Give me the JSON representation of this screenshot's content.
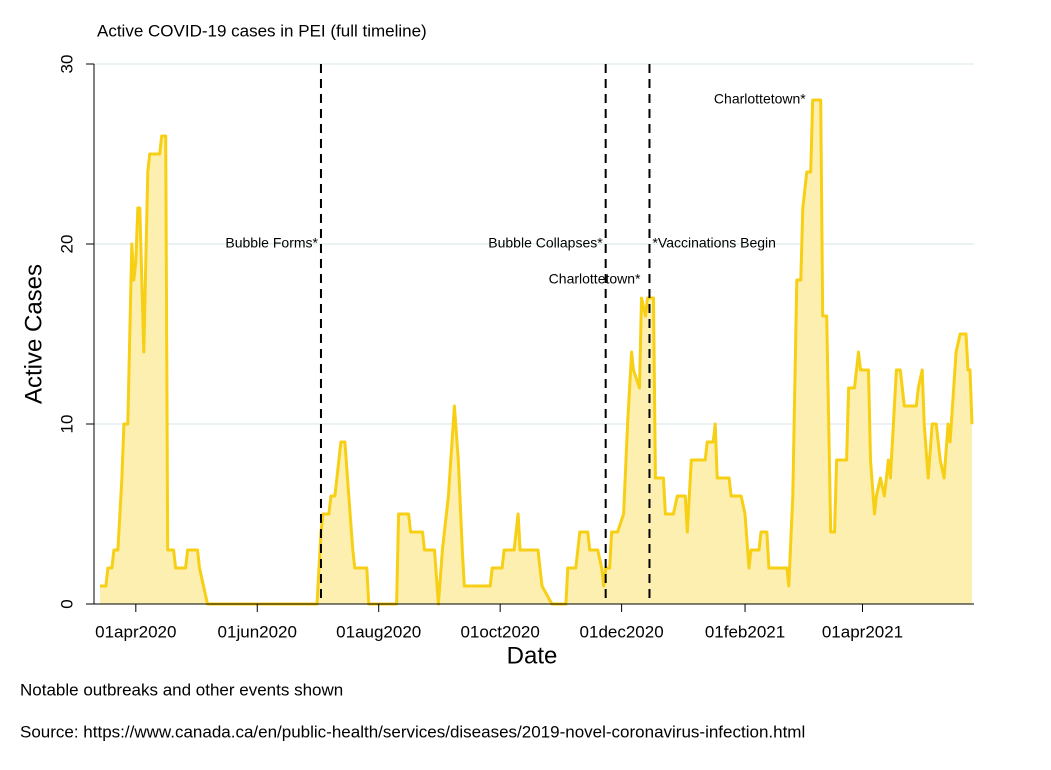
{
  "chart_data": {
    "type": "area",
    "title": "Active COVID-19 cases in PEI (full timeline)",
    "xlabel": "Date",
    "ylabel": "Active Cases",
    "notes": [
      "Notable outbreaks and other events shown",
      "Source: https://www.canada.ca/en/public-health/services/diseases/2019-novel-coronavirus-infection.html"
    ],
    "color": "#f7cf14",
    "fill": "#fdefb0",
    "grid": true,
    "xlim": [
      "2020-03-11",
      "2021-05-27"
    ],
    "xticks": [
      {
        "value": "2020-04-01",
        "label": "01apr2020"
      },
      {
        "value": "2020-06-01",
        "label": "01jun2020"
      },
      {
        "value": "2020-08-01",
        "label": "01aug2020"
      },
      {
        "value": "2020-10-01",
        "label": "01oct2020"
      },
      {
        "value": "2020-12-01",
        "label": "01dec2020"
      },
      {
        "value": "2021-02-01",
        "label": "01feb2021"
      },
      {
        "value": "2021-04-01",
        "label": "01apr2021"
      }
    ],
    "ylim": [
      0,
      30
    ],
    "yticks": [
      0,
      10,
      20,
      30
    ],
    "event_lines": [
      "2020-07-03",
      "2020-11-23",
      "2020-12-15"
    ],
    "annotations": [
      {
        "text": "Bubble Forms*",
        "x": "2020-07-02",
        "y": 20,
        "position": "left"
      },
      {
        "text": "Bubble Collapses*",
        "x": "2020-11-22",
        "y": 20,
        "position": "left"
      },
      {
        "text": "Charlottetown*",
        "x": "2020-12-11",
        "y": 18,
        "position": "left"
      },
      {
        "text": "*Vaccinations Begin",
        "x": "2020-12-16",
        "y": 20,
        "position": "right"
      },
      {
        "text": "Charlottetown*",
        "x": "2021-03-04",
        "y": 28,
        "position": "left"
      }
    ],
    "x": [
      "2020-03-14",
      "2020-03-17",
      "2020-03-18",
      "2020-03-20",
      "2020-03-21",
      "2020-03-23",
      "2020-03-25",
      "2020-03-26",
      "2020-03-28",
      "2020-03-30",
      "2020-03-31",
      "2020-04-01",
      "2020-04-02",
      "2020-04-03",
      "2020-04-05",
      "2020-04-07",
      "2020-04-08",
      "2020-04-13",
      "2020-04-14",
      "2020-04-16",
      "2020-04-17",
      "2020-04-20",
      "2020-04-21",
      "2020-04-26",
      "2020-04-27",
      "2020-05-02",
      "2020-05-03",
      "2020-05-05",
      "2020-05-07",
      "2020-07-01",
      "2020-07-03",
      "2020-07-04",
      "2020-07-07",
      "2020-07-08",
      "2020-07-10",
      "2020-07-12",
      "2020-07-13",
      "2020-07-15",
      "2020-07-17",
      "2020-07-19",
      "2020-07-20",
      "2020-07-26",
      "2020-07-27",
      "2020-08-10",
      "2020-08-11",
      "2020-08-16",
      "2020-08-17",
      "2020-08-23",
      "2020-08-24",
      "2020-08-29",
      "2020-08-31",
      "2020-09-02",
      "2020-09-05",
      "2020-09-08",
      "2020-09-10",
      "2020-09-12",
      "2020-09-13",
      "2020-09-26",
      "2020-09-27",
      "2020-10-02",
      "2020-10-03",
      "2020-10-08",
      "2020-10-10",
      "2020-10-11",
      "2020-10-20",
      "2020-10-22",
      "2020-10-27",
      "2020-11-03",
      "2020-11-04",
      "2020-11-08",
      "2020-11-10",
      "2020-11-14",
      "2020-11-15",
      "2020-11-19",
      "2020-11-21",
      "2020-11-22",
      "2020-11-23",
      "2020-11-25",
      "2020-11-26",
      "2020-11-29",
      "2020-12-02",
      "2020-12-04",
      "2020-12-06",
      "2020-12-07",
      "2020-12-10",
      "2020-12-11",
      "2020-12-13",
      "2020-12-14",
      "2020-12-17",
      "2020-12-18",
      "2020-12-22",
      "2020-12-23",
      "2020-12-27",
      "2020-12-29",
      "2021-01-02",
      "2021-01-03",
      "2021-01-05",
      "2021-01-12",
      "2021-01-13",
      "2021-01-16",
      "2021-01-17",
      "2021-01-18",
      "2021-01-24",
      "2021-01-25",
      "2021-01-30",
      "2021-02-01",
      "2021-02-03",
      "2021-02-04",
      "2021-02-08",
      "2021-02-09",
      "2021-02-12",
      "2021-02-13",
      "2021-02-22",
      "2021-02-23",
      "2021-02-25",
      "2021-02-27",
      "2021-03-01",
      "2021-03-02",
      "2021-03-04",
      "2021-03-06",
      "2021-03-07",
      "2021-03-11",
      "2021-03-12",
      "2021-03-14",
      "2021-03-16",
      "2021-03-18",
      "2021-03-19",
      "2021-03-24",
      "2021-03-25",
      "2021-03-28",
      "2021-03-30",
      "2021-03-31",
      "2021-04-04",
      "2021-04-05",
      "2021-04-07",
      "2021-04-08",
      "2021-04-10",
      "2021-04-12",
      "2021-04-14",
      "2021-04-15",
      "2021-04-17",
      "2021-04-18",
      "2021-04-20",
      "2021-04-22",
      "2021-04-28",
      "2021-04-29",
      "2021-05-01",
      "2021-05-02",
      "2021-05-04",
      "2021-05-06",
      "2021-05-08",
      "2021-05-10",
      "2021-05-12",
      "2021-05-14",
      "2021-05-15",
      "2021-05-18",
      "2021-05-20",
      "2021-05-23",
      "2021-05-24",
      "2021-05-25",
      "2021-05-26"
    ],
    "values": [
      1,
      1,
      2,
      2,
      3,
      3,
      7,
      10,
      10,
      20,
      18,
      19,
      22,
      22,
      14,
      24,
      25,
      25,
      26,
      26,
      3,
      3,
      2,
      2,
      3,
      3,
      2,
      1,
      0,
      0,
      4,
      5,
      5,
      6,
      6,
      8,
      9,
      9,
      6,
      3,
      2,
      2,
      0,
      0,
      5,
      5,
      4,
      4,
      3,
      3,
      0,
      3,
      6,
      11,
      8,
      3,
      1,
      1,
      2,
      2,
      3,
      3,
      5,
      3,
      3,
      1,
      0,
      0,
      2,
      2,
      4,
      4,
      3,
      3,
      2,
      1,
      2,
      2,
      4,
      4,
      5,
      10,
      14,
      13,
      12,
      17,
      16,
      17,
      17,
      7,
      7,
      5,
      5,
      6,
      6,
      4,
      8,
      8,
      9,
      9,
      10,
      7,
      7,
      6,
      6,
      5,
      2,
      3,
      3,
      4,
      4,
      2,
      2,
      1,
      6,
      18,
      18,
      22,
      24,
      24,
      28,
      28,
      16,
      16,
      4,
      4,
      8,
      8,
      12,
      12,
      14,
      13,
      13,
      8,
      5,
      6,
      7,
      6,
      8,
      7,
      11,
      13,
      13,
      11,
      11,
      12,
      13,
      10,
      7,
      10,
      10,
      8,
      7,
      10,
      9,
      14,
      15,
      15,
      13,
      13,
      10
    ]
  }
}
